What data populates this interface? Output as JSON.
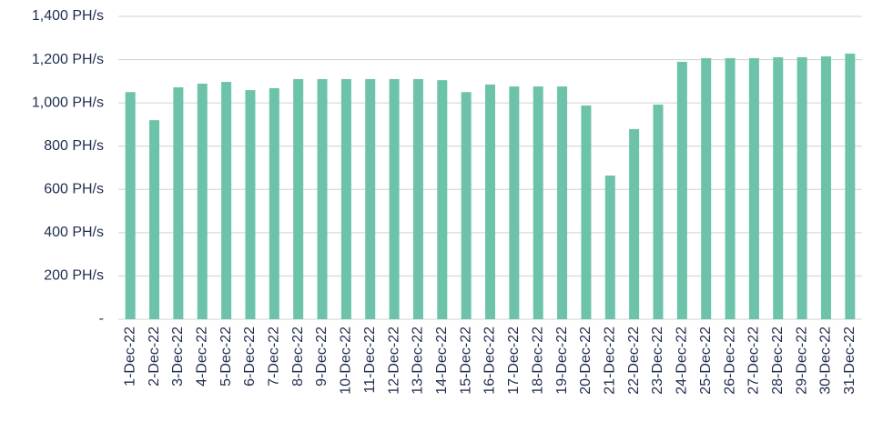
{
  "chart_data": {
    "type": "bar",
    "categories": [
      "1-Dec-22",
      "2-Dec-22",
      "3-Dec-22",
      "4-Dec-22",
      "5-Dec-22",
      "6-Dec-22",
      "7-Dec-22",
      "8-Dec-22",
      "9-Dec-22",
      "10-Dec-22",
      "11-Dec-22",
      "12-Dec-22",
      "13-Dec-22",
      "14-Dec-22",
      "15-Dec-22",
      "16-Dec-22",
      "17-Dec-22",
      "18-Dec-22",
      "19-Dec-22",
      "20-Dec-22",
      "21-Dec-22",
      "22-Dec-22",
      "23-Dec-22",
      "24-Dec-22",
      "25-Dec-22",
      "26-Dec-22",
      "27-Dec-22",
      "28-Dec-22",
      "29-Dec-22",
      "30-Dec-22",
      "31-Dec-22"
    ],
    "values": [
      1050,
      920,
      1072,
      1089,
      1097,
      1059,
      1068,
      1110,
      1110,
      1110,
      1110,
      1110,
      1110,
      1105,
      1050,
      1085,
      1076,
      1076,
      1076,
      988,
      664,
      879,
      992,
      1190,
      1207,
      1207,
      1207,
      1211,
      1211,
      1215,
      1228
    ],
    "color": "#6cc3aa",
    "ylim": [
      0,
      1400
    ],
    "yticks": [
      {
        "value": 0,
        "label": "-"
      },
      {
        "value": 200,
        "label": "200 PH/s"
      },
      {
        "value": 400,
        "label": "400 PH/s"
      },
      {
        "value": 600,
        "label": "600 PH/s"
      },
      {
        "value": 800,
        "label": "800 PH/s"
      },
      {
        "value": 1000,
        "label": "1,000 PH/s"
      },
      {
        "value": 1200,
        "label": "1,200 PH/s"
      },
      {
        "value": 1400,
        "label": "1,400 PH/s"
      }
    ],
    "grid": true
  }
}
